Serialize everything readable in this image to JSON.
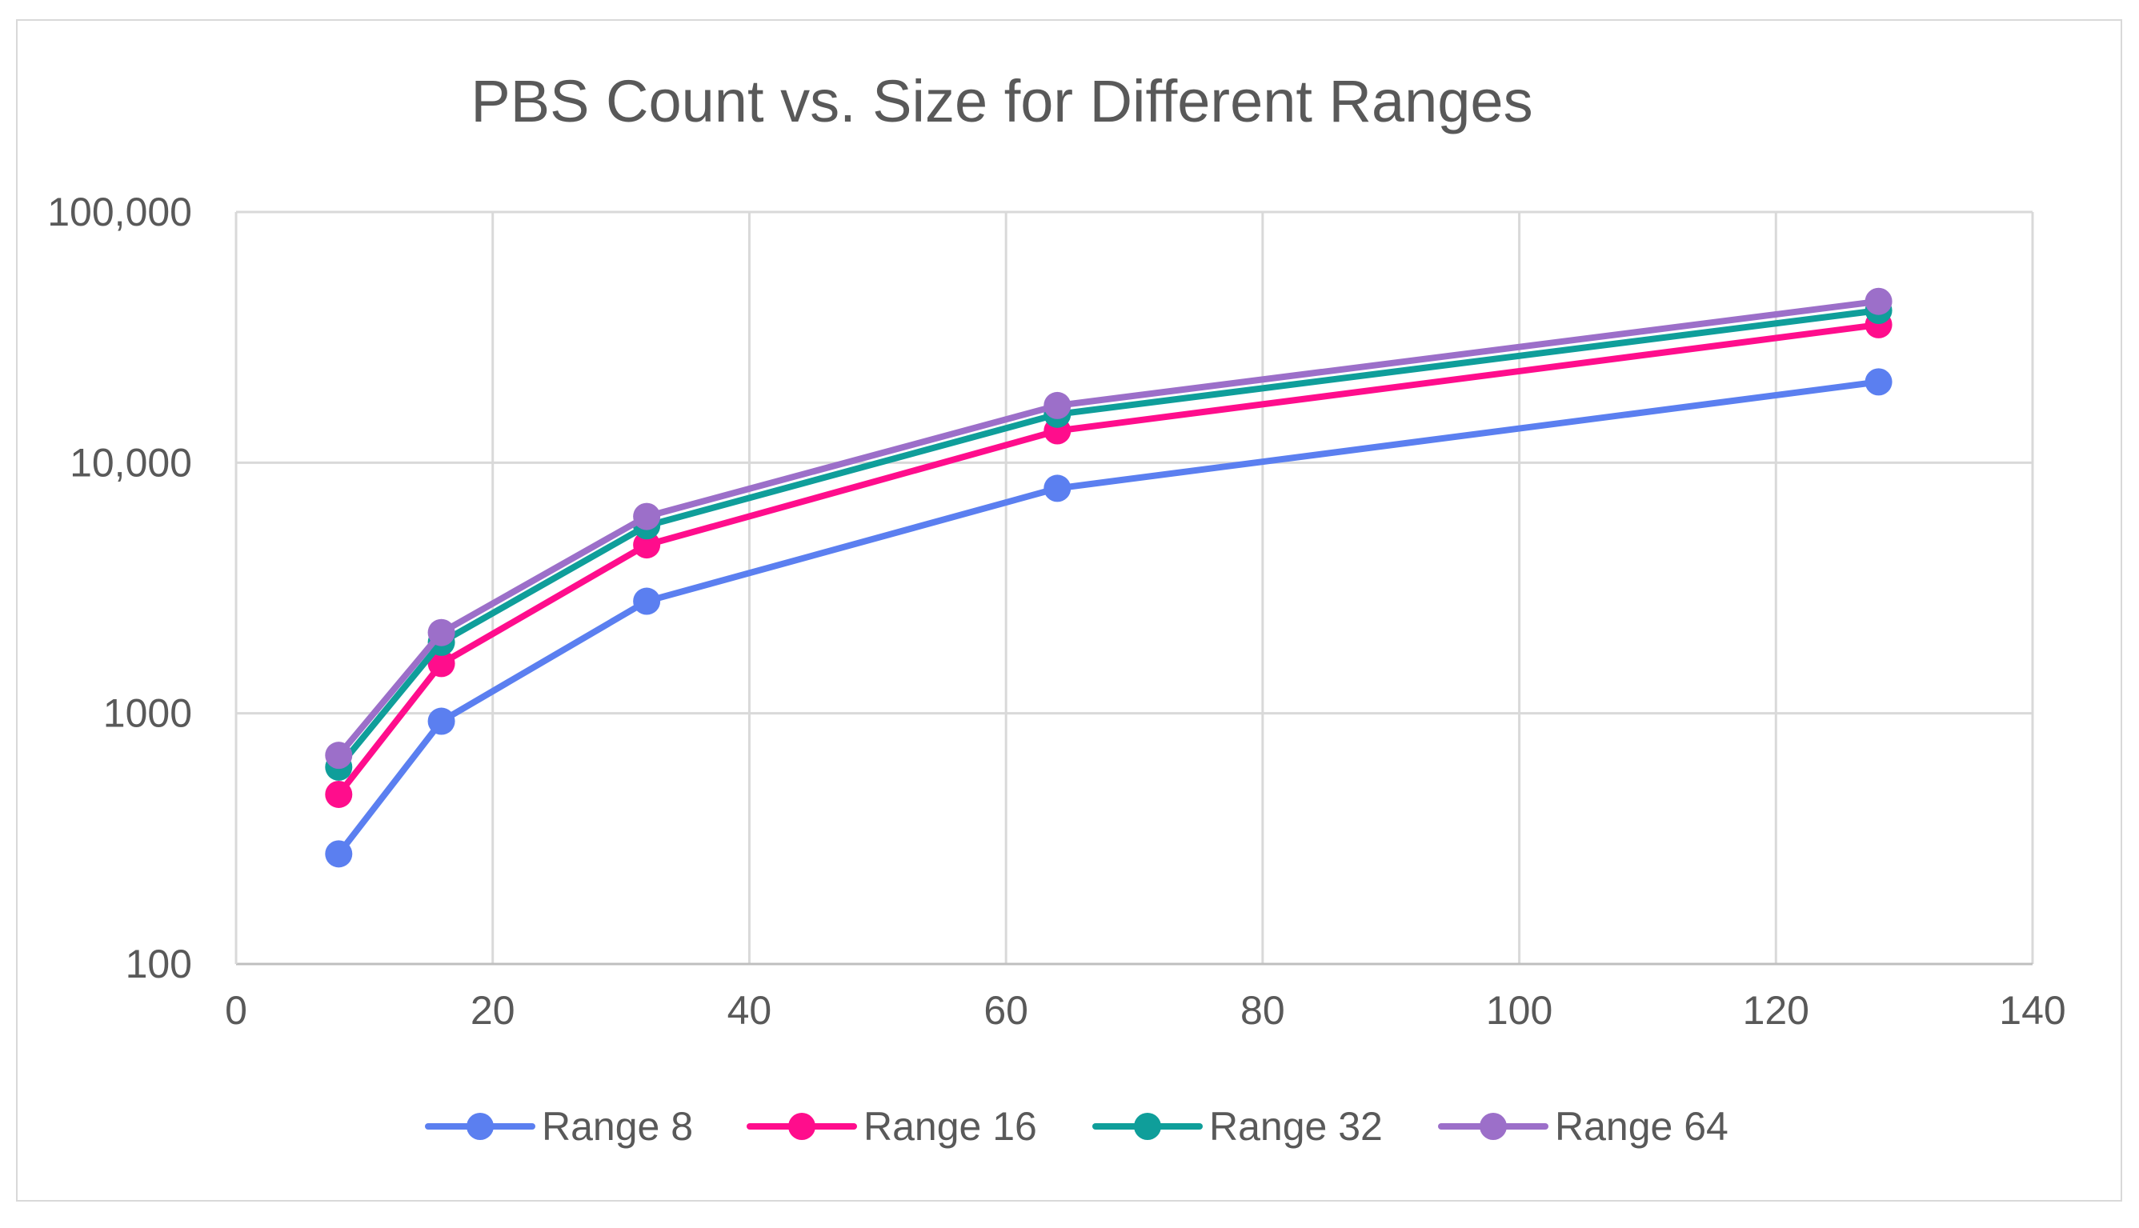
{
  "chart_data": {
    "type": "line",
    "title": "PBS Count vs. Size for Different Ranges",
    "xlabel": "",
    "ylabel": "",
    "x_scale": "linear",
    "y_scale": "log",
    "xlim": [
      0,
      140
    ],
    "ylim": [
      100,
      100000
    ],
    "x_ticks": [
      0,
      20,
      40,
      60,
      80,
      100,
      120,
      140
    ],
    "x_tick_labels": [
      "0",
      "20",
      "40",
      "60",
      "80",
      "100",
      "120",
      "140"
    ],
    "y_ticks": [
      100,
      1000,
      10000,
      100000
    ],
    "y_tick_labels": [
      "100",
      "1000",
      "10,000",
      "100,000"
    ],
    "grid": true,
    "legend_position": "bottom",
    "x": [
      8,
      16,
      32,
      64,
      128
    ],
    "series": [
      {
        "name": "Range 8",
        "color": "#5b7ff0",
        "values": [
          275,
          930,
          2800,
          7900,
          21000
        ]
      },
      {
        "name": "Range 16",
        "color": "#ff0d8c",
        "values": [
          475,
          1580,
          4700,
          13400,
          35500
        ]
      },
      {
        "name": "Range 32",
        "color": "#0f9e9a",
        "values": [
          610,
          1920,
          5600,
          15600,
          40500
        ]
      },
      {
        "name": "Range 64",
        "color": "#9c6fc9",
        "values": [
          680,
          2100,
          6100,
          16900,
          44000
        ]
      }
    ]
  }
}
